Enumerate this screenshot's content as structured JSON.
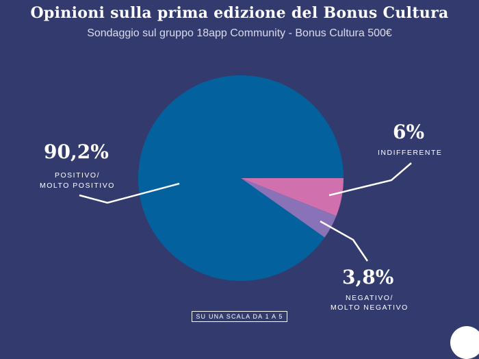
{
  "title": "Opinioni sulla prima edizione del Bonus Cultura",
  "subtitle": "Sondaggio sul gruppo 18app Community - Bonus Cultura 500€",
  "footnote": "SU UNA SCALA DA 1 A 5",
  "chart_data": {
    "type": "pie",
    "title": "Opinioni sulla prima edizione del Bonus Cultura",
    "subtitle": "Sondaggio sul gruppo 18app Community - Bonus Cultura 500€",
    "slices": [
      {
        "label_line1": "POSITIVO/",
        "label_line2": "MOLTO POSITIVO",
        "value": 90.2,
        "display": "90,2%",
        "color": "#03629e"
      },
      {
        "label_line1": "INDIFFERENTE",
        "label_line2": "",
        "value": 6,
        "display": "6%",
        "color": "#d071ad"
      },
      {
        "label_line1": "NEGATIVO/",
        "label_line2": "MOLTO NEGATIVO",
        "value": 3.8,
        "display": "3,8%",
        "color": "#8a72b9"
      }
    ]
  }
}
